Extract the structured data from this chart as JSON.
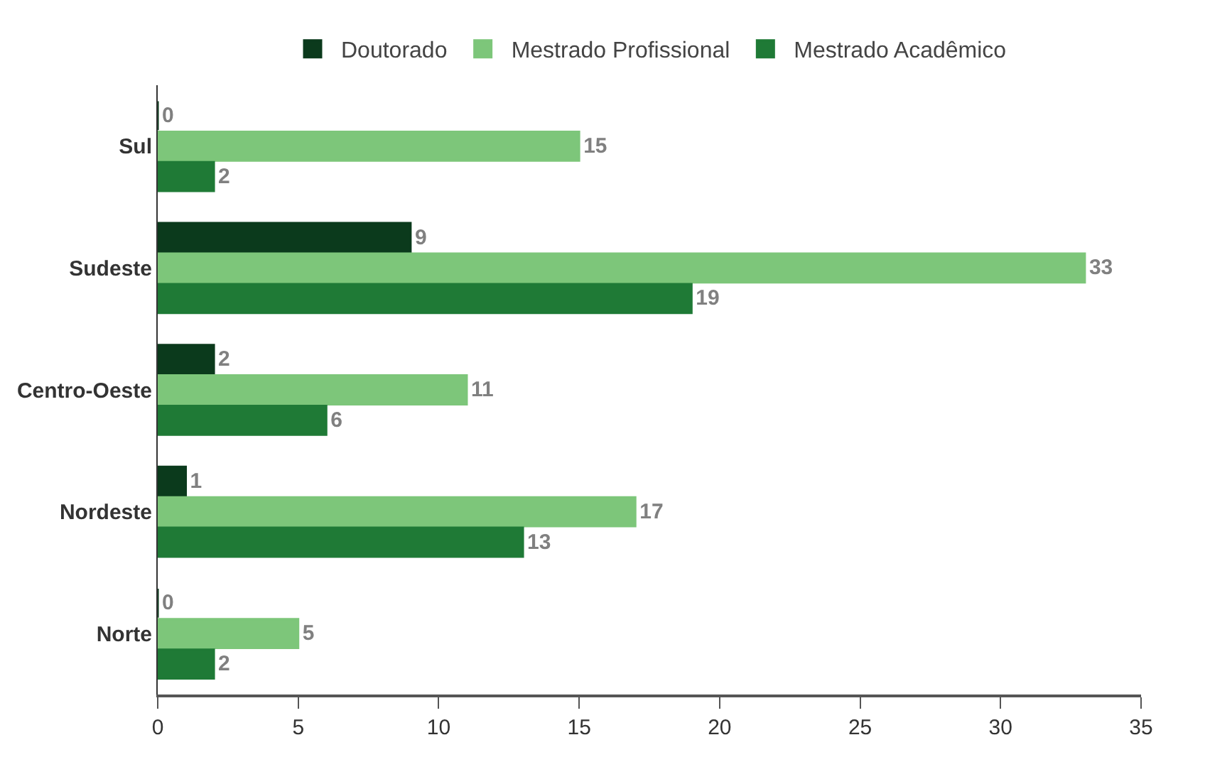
{
  "chart_data": {
    "type": "bar",
    "orientation": "horizontal",
    "categories": [
      "Sul",
      "Sudeste",
      "Centro-Oeste",
      "Nordeste",
      "Norte"
    ],
    "series": [
      {
        "name": "Doutorado",
        "color": "#0b3a1c",
        "values": [
          0,
          9,
          2,
          1,
          0
        ]
      },
      {
        "name": "Mestrado Profissional",
        "color": "#7dc67a",
        "values": [
          15,
          33,
          11,
          17,
          5
        ]
      },
      {
        "name": "Mestrado Acadêmico",
        "color": "#1f7a36",
        "values": [
          2,
          19,
          6,
          13,
          2
        ]
      }
    ],
    "xlim": [
      0,
      35
    ],
    "xticks": [
      0,
      5,
      10,
      15,
      20,
      25,
      30,
      35
    ],
    "data_labels": true,
    "legend": "top"
  }
}
